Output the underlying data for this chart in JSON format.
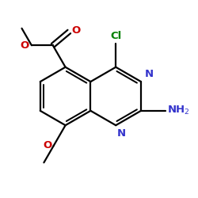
{
  "bg_color": "#ffffff",
  "bond_lw": 1.6,
  "bond_color": "#000000",
  "cl_color": "#008000",
  "n_color": "#3333cc",
  "o_color": "#cc0000",
  "figsize": [
    2.5,
    2.5
  ],
  "dpi": 100,
  "xlim": [
    -1.6,
    1.9
  ],
  "ylim": [
    -1.7,
    1.6
  ]
}
